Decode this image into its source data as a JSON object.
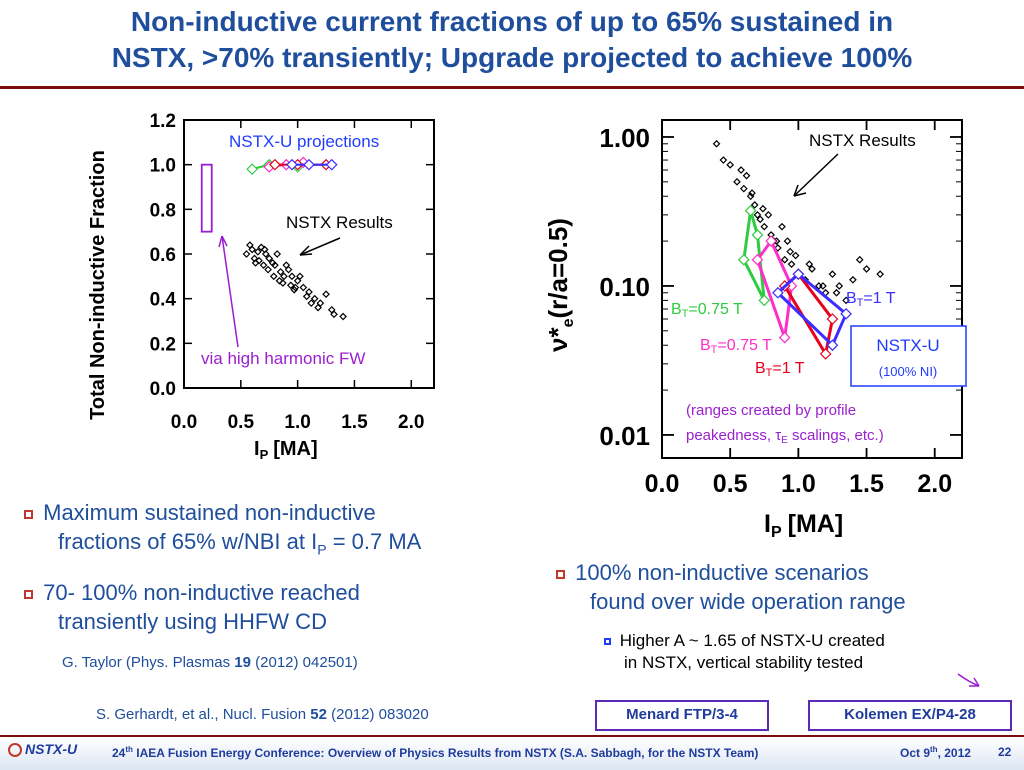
{
  "title": {
    "line1": "Non-inductive current fractions of up to 65% sustained in",
    "line2": "NSTX, >70% transiently; Upgrade projected to achieve 100%"
  },
  "left_chart": {
    "ylabel": "Total Non-inductive Fraction",
    "xlabel": "I",
    "xlabel_sub": "P",
    "xlabel_unit": "[MA]",
    "yticks": [
      "0.0",
      "0.2",
      "0.4",
      "0.6",
      "0.8",
      "1.0",
      "1.2"
    ],
    "xticks": [
      "0.0",
      "0.5",
      "1.0",
      "1.5",
      "2.0"
    ],
    "annot_projections": "NSTX-U projections",
    "annot_results": "NSTX Results",
    "annot_hhfw": "via high harmonic FW"
  },
  "right_chart": {
    "ylabel_nu": "ν*",
    "ylabel_sub": "e",
    "ylabel_rest": "(r/a=0.5)",
    "xlabel": "I",
    "xlabel_sub": "P",
    "xlabel_unit": "[MA]",
    "yticks": [
      "1.00",
      "0.10",
      "0.01"
    ],
    "xticks": [
      "0.0",
      "0.5",
      "1.0",
      "1.5",
      "2.0"
    ],
    "annot_results": "NSTX Results",
    "bt_green": "=0.75 T",
    "bt_magenta": "=0.75 T",
    "bt_red": "=1 T",
    "bt_blue": "=1 T",
    "bt_letter": "B",
    "bt_sub": "T",
    "box_title": "NSTX-U",
    "box_sub": "(100% NI)",
    "ranges_line1": "(ranges created by profile",
    "ranges_line2a": "peakedness, ",
    "ranges_tau": "τ",
    "ranges_tau_sub": "E",
    "ranges_line2b": " scalings, etc.)"
  },
  "bullets": {
    "b1_a": "Maximum sustained non-inductive",
    "b1_b": "fractions of 65% w/NBI at I",
    "b1_sub": "P",
    "b1_c": " = 0.7 MA",
    "b2_a": "70- 100% non-inductive reached",
    "b2_b": "transiently using HHFW CD",
    "ref1_a": "G. Taylor (Phys. Plasmas ",
    "ref1_vol": "19",
    "ref1_b": " (2012) 042501)",
    "ref2_a": "S. Gerhardt, et al., Nucl. Fusion ",
    "ref2_vol": "52",
    "ref2_b": " (2012) 083020",
    "b3_a": "100% non-inductive scenarios",
    "b3_b": "found over wide operation range",
    "sub_a": "Higher A ~ 1.65 of NSTX-U created",
    "sub_b": "in NSTX, vertical stability tested",
    "tag1": "Menard FTP/3-4",
    "tag2": "Kolemen EX/P4-28"
  },
  "footer": {
    "logo": "NSTX-U",
    "conf_pre": "24",
    "conf_sup": "th",
    "conf_text": " IAEA Fusion Energy Conference: Overview of Physics Results from NSTX (S.A. Sabbagh, for the NSTX Team)",
    "date_pre": "Oct 9",
    "date_sup": "th",
    "date_post": ", 2012",
    "page": "22"
  },
  "colors": {
    "title": "#1f4e9c",
    "green": "#2ecc40",
    "magenta": "#ff2ec8",
    "red": "#e8001c",
    "blue": "#3b2cff",
    "purple": "#9b1fd0",
    "accent_rule": "#7a0c0c"
  },
  "chart_data": [
    {
      "type": "scatter",
      "xlabel": "I_P [MA]",
      "ylabel": "Total Non-inductive Fraction",
      "xlim": [
        0.0,
        2.2
      ],
      "ylim": [
        0.0,
        1.2
      ],
      "series": [
        {
          "name": "NSTX Results",
          "color": "#000000",
          "x": [
            0.55,
            0.6,
            0.62,
            0.65,
            0.68,
            0.7,
            0.72,
            0.75,
            0.78,
            0.8,
            0.82,
            0.85,
            0.88,
            0.9,
            0.92,
            0.95,
            0.98,
            1.0,
            1.02,
            1.05,
            1.1,
            1.15,
            1.2,
            1.25,
            1.3,
            0.58,
            0.66,
            0.74,
            0.84,
            0.94,
            1.08,
            0.63,
            0.71,
            0.79,
            0.87,
            0.97,
            1.12,
            1.18,
            1.32,
            1.4
          ],
          "y": [
            0.6,
            0.62,
            0.58,
            0.61,
            0.63,
            0.55,
            0.6,
            0.58,
            0.56,
            0.55,
            0.6,
            0.52,
            0.5,
            0.55,
            0.53,
            0.5,
            0.45,
            0.48,
            0.5,
            0.45,
            0.43,
            0.4,
            0.38,
            0.42,
            0.35,
            0.64,
            0.57,
            0.53,
            0.48,
            0.46,
            0.41,
            0.56,
            0.62,
            0.5,
            0.47,
            0.44,
            0.38,
            0.36,
            0.33,
            0.32
          ]
        },
        {
          "name": "NSTX-U projections (green)",
          "color": "#2ecc40",
          "x": [
            0.6,
            0.75,
            0.9,
            1.0
          ],
          "y": [
            0.98,
            1.0,
            1.0,
            0.99
          ]
        },
        {
          "name": "NSTX-U projections (magenta)",
          "color": "#ff2ec8",
          "x": [
            0.75,
            0.9,
            1.05
          ],
          "y": [
            0.99,
            1.0,
            1.01
          ]
        },
        {
          "name": "NSTX-U projections (red)",
          "color": "#e8001c",
          "x": [
            0.8,
            1.0,
            1.25
          ],
          "y": [
            1.0,
            1.0,
            1.0
          ]
        },
        {
          "name": "NSTX-U projections (blue)",
          "color": "#3b2cff",
          "x": [
            0.95,
            1.1,
            1.3
          ],
          "y": [
            1.0,
            1.0,
            1.0
          ]
        }
      ],
      "hhfw_range": {
        "x": 0.2,
        "y": [
          0.7,
          1.0
        ]
      }
    },
    {
      "type": "scatter",
      "xlabel": "I_P [MA]",
      "ylabel": "ν*_e(r/a=0.5)",
      "xscale": "linear",
      "yscale": "log",
      "xlim": [
        0.0,
        2.2
      ],
      "ylim": [
        0.007,
        1.3
      ],
      "series": [
        {
          "name": "NSTX Results",
          "color": "#000000",
          "x": [
            0.4,
            0.45,
            0.5,
            0.55,
            0.6,
            0.62,
            0.65,
            0.68,
            0.7,
            0.72,
            0.75,
            0.78,
            0.8,
            0.82,
            0.85,
            0.88,
            0.9,
            0.92,
            0.95,
            0.98,
            1.0,
            1.05,
            1.1,
            1.15,
            1.2,
            1.25,
            1.3,
            1.35,
            1.4,
            1.5,
            0.58,
            0.66,
            0.74,
            0.84,
            0.94,
            1.08,
            1.18,
            1.28,
            1.45,
            1.6
          ],
          "y": [
            0.9,
            0.7,
            0.65,
            0.5,
            0.45,
            0.55,
            0.4,
            0.35,
            0.3,
            0.28,
            0.25,
            0.3,
            0.22,
            0.2,
            0.18,
            0.25,
            0.15,
            0.2,
            0.14,
            0.16,
            0.12,
            0.11,
            0.13,
            0.1,
            0.09,
            0.12,
            0.1,
            0.08,
            0.11,
            0.13,
            0.6,
            0.42,
            0.33,
            0.2,
            0.17,
            0.14,
            0.1,
            0.09,
            0.15,
            0.12
          ]
        },
        {
          "name": "B_T=0.75 T (green)",
          "color": "#2ecc40",
          "x": [
            0.6,
            0.65,
            0.7,
            0.75,
            0.6
          ],
          "y": [
            0.15,
            0.32,
            0.22,
            0.08,
            0.15
          ]
        },
        {
          "name": "B_T=0.75 T (magenta)",
          "color": "#ff2ec8",
          "x": [
            0.7,
            0.8,
            0.95,
            0.9,
            0.7
          ],
          "y": [
            0.15,
            0.2,
            0.1,
            0.045,
            0.15
          ]
        },
        {
          "name": "B_T=1 T (red)",
          "color": "#e8001c",
          "x": [
            0.9,
            1.0,
            1.25,
            1.2,
            0.9
          ],
          "y": [
            0.1,
            0.12,
            0.06,
            0.035,
            0.1
          ]
        },
        {
          "name": "B_T=1 T (blue)",
          "color": "#3b2cff",
          "x": [
            0.85,
            1.0,
            1.35,
            1.25,
            0.85
          ],
          "y": [
            0.09,
            0.12,
            0.065,
            0.04,
            0.09
          ]
        }
      ]
    }
  ]
}
